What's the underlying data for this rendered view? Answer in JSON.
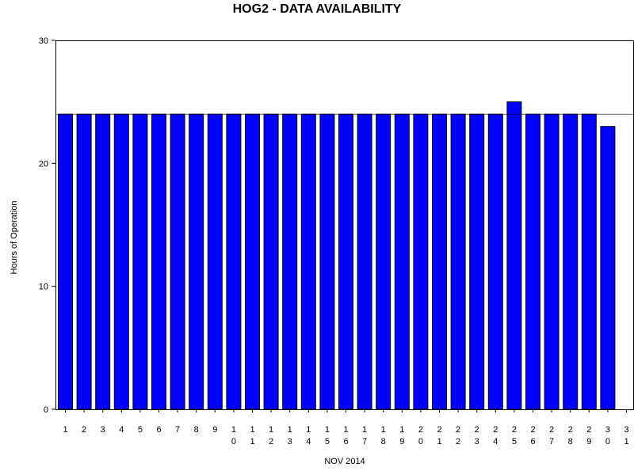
{
  "chart_data": {
    "type": "bar",
    "title": "HOG2 - DATA AVAILABILITY",
    "xlabel": "NOV 2014",
    "ylabel": "Hours of Operation",
    "ylim": [
      0,
      30
    ],
    "yticks": [
      0,
      10,
      20,
      30
    ],
    "reference_line": 24,
    "categories": [
      "1",
      "2",
      "3",
      "4",
      "5",
      "6",
      "7",
      "8",
      "9",
      "10",
      "11",
      "12",
      "13",
      "14",
      "15",
      "16",
      "17",
      "18",
      "19",
      "20",
      "21",
      "22",
      "23",
      "24",
      "25",
      "26",
      "27",
      "28",
      "29",
      "30",
      "31"
    ],
    "values": [
      24,
      24,
      24,
      24,
      24,
      24,
      24,
      24,
      24,
      24,
      24,
      24,
      24,
      24,
      24,
      24,
      24,
      24,
      24,
      24,
      24,
      24,
      24,
      24,
      25,
      24,
      24,
      24,
      24,
      23,
      null
    ],
    "bar_color": "#0000ff",
    "bar_edge_color": "#000000",
    "grid": false
  }
}
